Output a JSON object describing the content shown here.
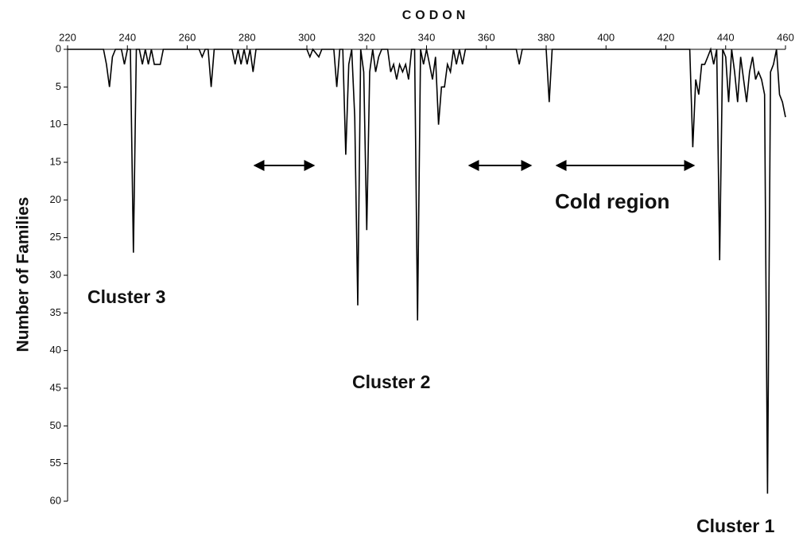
{
  "chart_data": {
    "type": "line",
    "x_label": "CODON",
    "y_label": "Number of Families",
    "xlim": [
      220,
      460
    ],
    "xticks": [
      220,
      240,
      260,
      280,
      300,
      320,
      340,
      360,
      380,
      400,
      420,
      440,
      460
    ],
    "ylim": [
      0,
      60
    ],
    "yticks": [
      0,
      5,
      10,
      15,
      20,
      25,
      30,
      35,
      40,
      45,
      50,
      55,
      60
    ],
    "y_reversed": true,
    "x_axis_position": "top",
    "color": "#000000",
    "x": [
      220,
      232,
      233,
      234,
      235,
      236,
      238,
      239,
      240,
      241,
      242,
      243,
      244,
      245,
      246,
      247,
      248,
      249,
      251,
      252,
      264,
      265,
      266,
      267,
      268,
      269,
      275,
      276,
      277,
      278,
      279,
      280,
      281,
      282,
      283,
      300,
      301,
      302,
      304,
      305,
      309,
      310,
      311,
      312,
      313,
      314,
      315,
      316,
      317,
      318,
      319,
      320,
      321,
      322,
      323,
      324,
      325,
      327,
      328,
      329,
      330,
      331,
      332,
      333,
      334,
      335,
      336,
      337,
      338,
      339,
      340,
      341,
      342,
      343,
      344,
      345,
      346,
      347,
      348,
      349,
      350,
      351,
      352,
      353,
      370,
      371,
      372,
      380,
      381,
      382,
      428,
      429,
      430,
      431,
      432,
      433,
      434,
      435,
      436,
      437,
      438,
      439,
      440,
      441,
      442,
      443,
      444,
      445,
      446,
      447,
      448,
      449,
      450,
      451,
      452,
      453,
      454,
      455,
      456,
      457,
      458,
      459,
      460
    ],
    "values": [
      0,
      0,
      2,
      5,
      1,
      0,
      0,
      2,
      0,
      0,
      27,
      0,
      0,
      2,
      0,
      2,
      0,
      2,
      2,
      0,
      0,
      1,
      0,
      0,
      5,
      0,
      0,
      2,
      0,
      2,
      0,
      2,
      0,
      3,
      0,
      0,
      1,
      0,
      1,
      0,
      0,
      5,
      0,
      0,
      14,
      2,
      0,
      9,
      34,
      0,
      3,
      24,
      3,
      0,
      3,
      1,
      0,
      0,
      3,
      2,
      4,
      2,
      3,
      2,
      4,
      0,
      0,
      36,
      0,
      2,
      0,
      2,
      4,
      1,
      10,
      5,
      5,
      2,
      3,
      0,
      2,
      0,
      2,
      0,
      0,
      2,
      0,
      0,
      7,
      0,
      0,
      13,
      4,
      6,
      2,
      2,
      1,
      0,
      2,
      0,
      28,
      0,
      1,
      7,
      0,
      3,
      7,
      1,
      4,
      7,
      3,
      1,
      4,
      3,
      4,
      6,
      59,
      3,
      2,
      0,
      6,
      7,
      9
    ],
    "annotations": [
      "Cluster 3",
      "Cluster 2",
      "Cluster 1",
      "Cold region"
    ]
  }
}
